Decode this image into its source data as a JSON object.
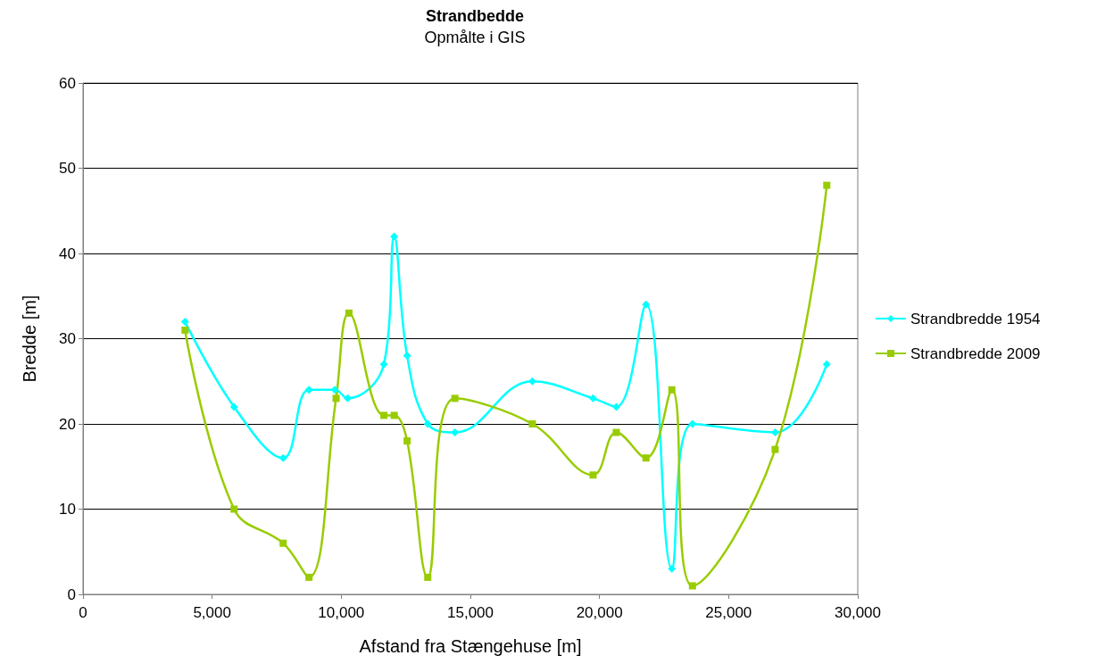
{
  "chart_data": {
    "type": "line",
    "title": "Strandbedde",
    "subtitle": "Opmålte i GIS",
    "xlabel": "Afstand fra Stængehuse [m]",
    "ylabel": "Bredde [m]",
    "series": [
      {
        "name": "Strandbredde 1954",
        "color": "#00ffff",
        "marker": "diamond",
        "x": [
          3950,
          5850,
          7750,
          8750,
          9750,
          10250,
          11650,
          12050,
          12550,
          13350,
          14400,
          17400,
          19750,
          20650,
          21800,
          22800,
          23600,
          26800,
          28800
        ],
        "values": [
          32,
          22,
          16,
          24,
          24,
          23,
          27,
          42,
          28,
          20,
          19,
          25,
          23,
          22,
          34,
          3,
          20,
          19,
          27
        ]
      },
      {
        "name": "Strandbredde 2009",
        "color": "#99cc00",
        "marker": "square",
        "x": [
          3950,
          5850,
          7750,
          8750,
          9800,
          10300,
          11650,
          12050,
          12550,
          13350,
          14400,
          17400,
          19750,
          20650,
          21800,
          22800,
          23600,
          26800,
          28800
        ],
        "values": [
          31,
          10,
          6,
          2,
          23,
          33,
          21,
          21,
          18,
          2,
          23,
          20,
          14,
          19,
          16,
          24,
          1,
          17,
          48
        ]
      }
    ],
    "xlim": [
      0,
      30000
    ],
    "xticks": [
      {
        "value": 0,
        "label": "0"
      },
      {
        "value": 5000,
        "label": "5,000"
      },
      {
        "value": 10000,
        "label": "10,000"
      },
      {
        "value": 15000,
        "label": "15,000"
      },
      {
        "value": 20000,
        "label": "20,000"
      },
      {
        "value": 25000,
        "label": "25,000"
      },
      {
        "value": 30000,
        "label": "30,000"
      }
    ],
    "ylim": [
      0,
      60
    ],
    "yticks": [
      0,
      10,
      20,
      30,
      40,
      50,
      60
    ],
    "grid": "y",
    "legend": "right",
    "line_style": "solid"
  }
}
